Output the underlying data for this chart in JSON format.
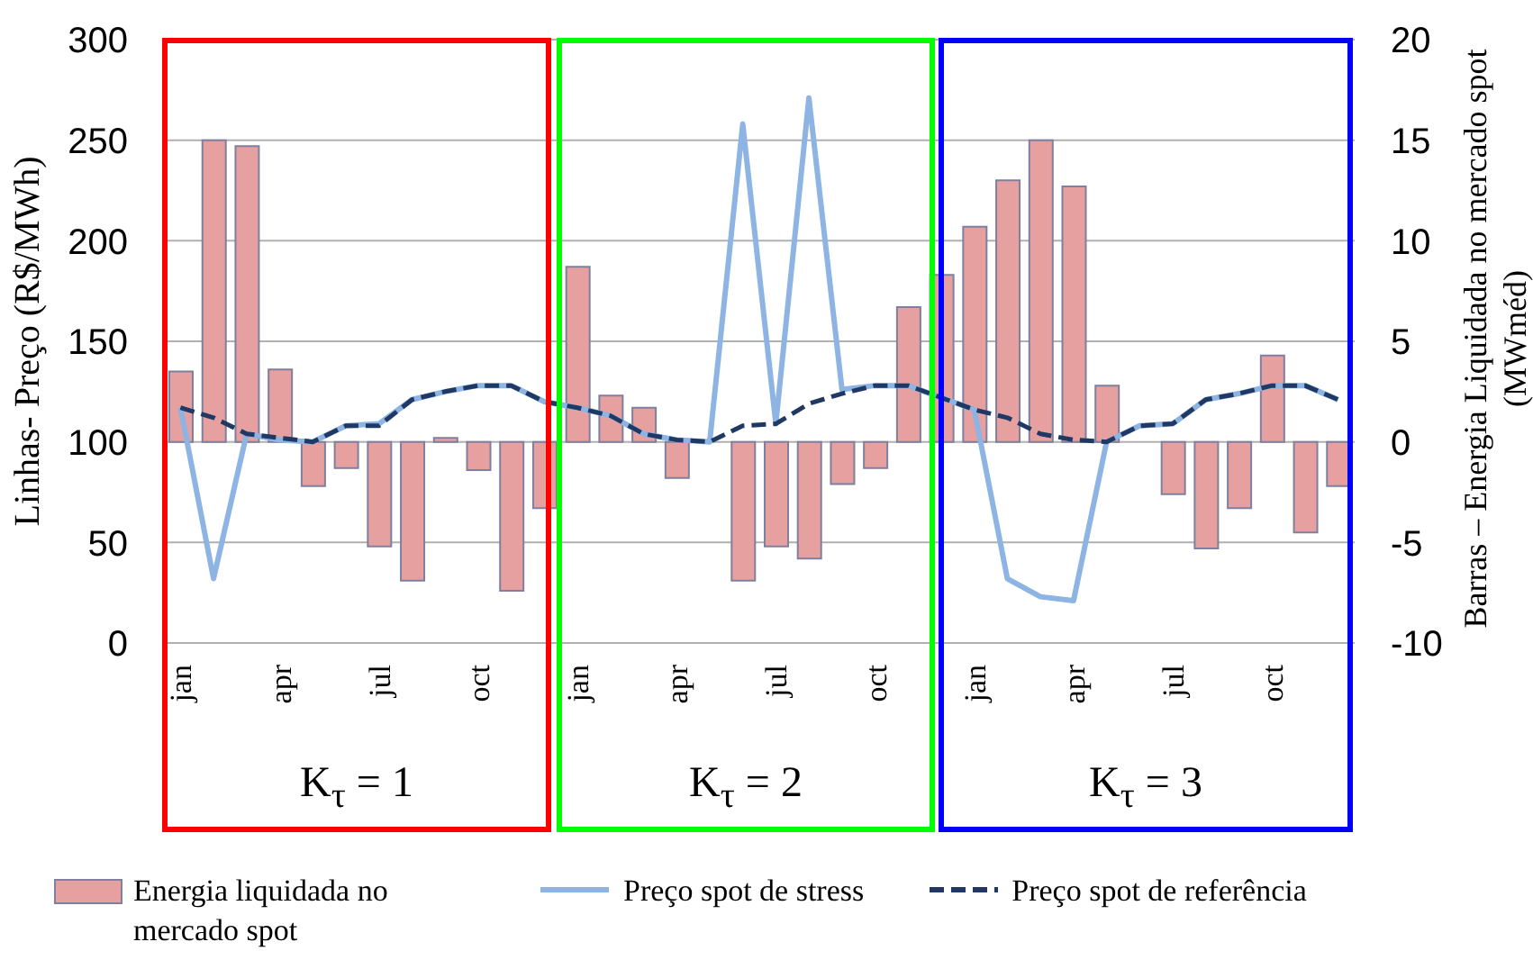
{
  "chart_data": {
    "type": "bar",
    "ylabel": "Linhas- Preço (R$/MWh)",
    "y2label": "Barras – Energia Liquidada no mercado spot (MWméd)",
    "categories": [
      "jan",
      null,
      null,
      "apr",
      null,
      null,
      "jul",
      null,
      null,
      "oct",
      null,
      null,
      "jan",
      null,
      null,
      "apr",
      null,
      null,
      "jul",
      null,
      null,
      "oct",
      null,
      null,
      "jan",
      null,
      null,
      "apr",
      null,
      null,
      "jul",
      null,
      null,
      "oct",
      null,
      null
    ],
    "series": [
      {
        "name": "Energia liquidada no mercado spot",
        "axis": "y2",
        "color": "#e6a0a0",
        "values": [
          3.5,
          15.0,
          14.7,
          3.6,
          -2.2,
          -1.3,
          -5.2,
          -6.9,
          0.2,
          -1.4,
          -7.4,
          -3.3,
          8.7,
          2.3,
          1.7,
          -1.8,
          0,
          -6.9,
          -5.2,
          -5.8,
          -2.1,
          -1.3,
          6.7,
          8.3,
          10.7,
          13.0,
          15.0,
          12.7,
          2.8,
          0,
          -2.6,
          -5.3,
          -3.3,
          4.3,
          -4.5,
          -2.2
        ]
      },
      {
        "name": "Preço spot de stress",
        "type": "line",
        "axis": "y",
        "color": "#8db4e2",
        "line_style": "solid",
        "values": [
          117,
          32,
          104,
          101,
          100,
          108,
          109,
          121,
          125,
          128,
          128,
          120,
          117,
          113,
          104,
          101,
          100,
          258,
          109,
          271,
          126,
          128,
          128,
          122,
          116,
          32,
          23,
          21,
          100,
          108,
          109,
          121,
          124,
          128,
          128,
          121
        ]
      },
      {
        "name": "Preço spot de referência",
        "type": "line",
        "axis": "y",
        "color": "#1f3864",
        "line_style": "dashed",
        "values": [
          117,
          112,
          104,
          102,
          100,
          108,
          108,
          121,
          125,
          128,
          128,
          120,
          117,
          113,
          104,
          101,
          100,
          108,
          109,
          119,
          124,
          128,
          128,
          122,
          116,
          112,
          104,
          101,
          100,
          108,
          109,
          121,
          124,
          128,
          128,
          121
        ]
      }
    ],
    "ylim": [
      0,
      300
    ],
    "yticks": [
      0,
      50,
      100,
      150,
      200,
      250,
      300
    ],
    "y2lim": [
      -10,
      20
    ],
    "y2ticks": [
      -10,
      -5,
      0,
      5,
      10,
      15,
      20
    ],
    "grid": "y",
    "legend": "bottom",
    "marker": "none",
    "annotations": [
      "K$_{τ}$ = 1",
      "K$_{τ}$ = 2",
      "K$_{τ}$ = 3"
    ]
  }
}
